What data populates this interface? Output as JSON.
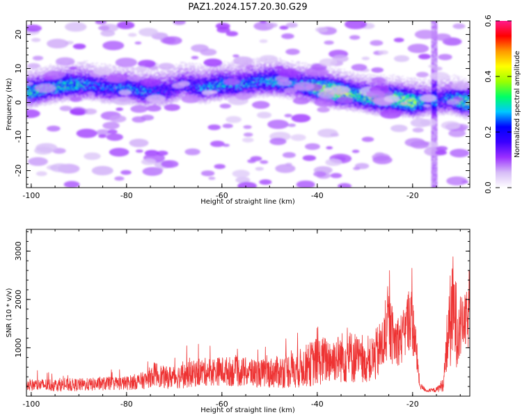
{
  "title": "PAZ1.2024.157.20.30.G29",
  "chart_data": [
    {
      "type": "heatmap",
      "title": "PAZ1.2024.157.20.30.G29",
      "xlabel": "Height of straight line (km)",
      "ylabel": "Frequency (Hz)",
      "xlim": [
        -101,
        -8
      ],
      "ylim": [
        -25,
        24
      ],
      "xticks": [
        -100,
        -80,
        -60,
        -40,
        -20
      ],
      "xtick_labels": [
        "-100",
        "-80",
        "-60",
        "-40",
        "-20"
      ],
      "yticks": [
        -20,
        -10,
        0,
        10,
        20
      ],
      "ytick_labels": [
        "-20",
        "-10",
        "0",
        "10",
        "20"
      ],
      "colorbar": {
        "label": "Normalized spectral amplitude",
        "range": [
          0.0,
          0.6
        ],
        "ticks": [
          0.0,
          0.2,
          0.4,
          0.6
        ],
        "tick_labels": [
          "0.0",
          "0.2",
          "0.4",
          "0.6"
        ],
        "colormap": [
          "#ffffff",
          "#d7bdf7",
          "#9b30ff",
          "#3a00ff",
          "#0000ff",
          "#00c8ff",
          "#00ff66",
          "#9bff00",
          "#ffff00",
          "#ff9900",
          "#ff0000",
          "#ff1a8c"
        ]
      },
      "intensity_profile": {
        "x": [
          -100,
          -96,
          -92,
          -88,
          -84,
          -80,
          -76,
          -72,
          -68,
          -64,
          -60,
          -56,
          -52,
          -48,
          -44,
          -40,
          -36,
          -32,
          -28,
          -24,
          -20,
          -16,
          -12,
          -9
        ],
        "center_frequency_hz": [
          3,
          4,
          5,
          5,
          4,
          4,
          3,
          3,
          5,
          4,
          5,
          5,
          6,
          6,
          5,
          4,
          3,
          2,
          1,
          1,
          0,
          0,
          1,
          0
        ],
        "peak_amplitude": [
          0.25,
          0.22,
          0.25,
          0.2,
          0.18,
          0.2,
          0.2,
          0.16,
          0.15,
          0.2,
          0.22,
          0.2,
          0.2,
          0.22,
          0.2,
          0.3,
          0.38,
          0.25,
          0.3,
          0.3,
          0.33,
          0.12,
          0.22,
          0.3
        ]
      },
      "vertical_streak_x": -15.5
    },
    {
      "type": "line",
      "xlabel": "Height of straight line (km)",
      "ylabel": "SNR (10 * v/v)",
      "xlim": [
        -101,
        -8
      ],
      "ylim": [
        0,
        3450
      ],
      "xticks": [
        -100,
        -80,
        -60,
        -40,
        -20
      ],
      "xtick_labels": [
        "-100",
        "-80",
        "-60",
        "-40",
        "-20"
      ],
      "yticks": [
        1000,
        2000,
        3000
      ],
      "ytick_labels": [
        "1000",
        "2000",
        "3000"
      ],
      "line_color": "#ee3333",
      "envelope": {
        "x": [
          -101,
          -96,
          -92,
          -88,
          -84,
          -80,
          -76,
          -74,
          -72,
          -68,
          -64,
          -60,
          -56,
          -52,
          -48,
          -44,
          -40,
          -36,
          -34,
          -32,
          -30,
          -28,
          -26,
          -25,
          -24,
          -22,
          -20.5,
          -19.5,
          -18.5,
          -17,
          -15,
          -13.5,
          -12.5,
          -11.5,
          -10.5,
          -9.5,
          -8
        ],
        "mean": [
          230,
          230,
          230,
          240,
          260,
          270,
          330,
          470,
          380,
          420,
          500,
          520,
          500,
          470,
          500,
          560,
          720,
          780,
          820,
          800,
          650,
          800,
          1100,
          1500,
          1150,
          1200,
          1700,
          1200,
          220,
          110,
          130,
          250,
          1400,
          1800,
          1350,
          1500,
          1600
        ],
        "amplitude": [
          200,
          220,
          220,
          220,
          230,
          240,
          300,
          420,
          380,
          430,
          480,
          500,
          520,
          480,
          560,
          650,
          850,
          800,
          950,
          900,
          600,
          900,
          1000,
          1200,
          900,
          900,
          1200,
          900,
          120,
          50,
          80,
          250,
          1500,
          1900,
          1300,
          900,
          1100
        ]
      }
    }
  ]
}
